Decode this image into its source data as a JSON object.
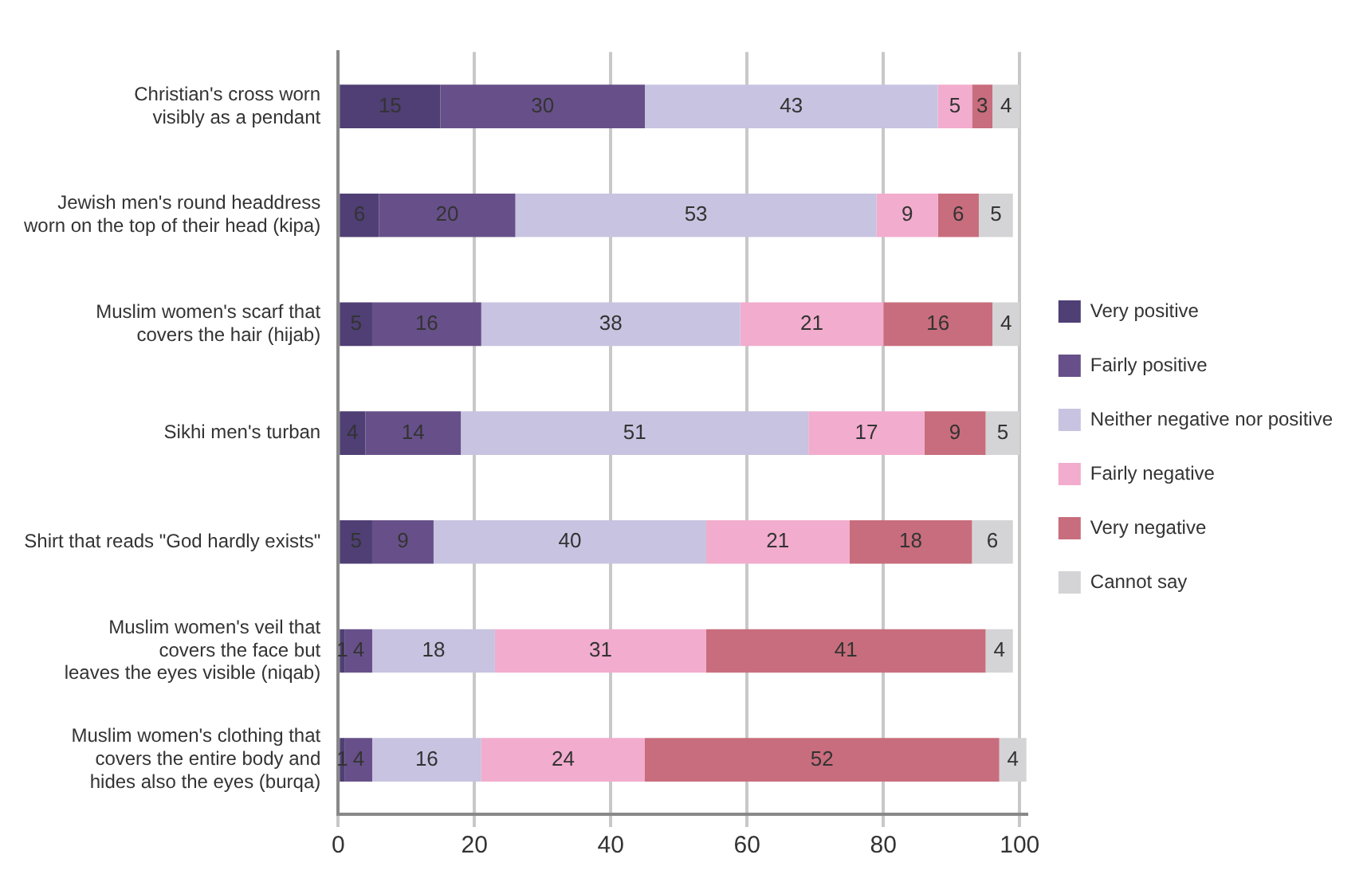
{
  "chart_data": {
    "type": "bar",
    "orientation": "horizontal",
    "stacked": true,
    "categories": [
      "Christian's cross worn\nvisibly as a pendant",
      "Jewish men's round headdress\nworn on the top of their head (kipa)",
      "Muslim women's scarf that\ncovers the hair (hijab)",
      "Sikhi men's turban",
      "Shirt that reads \"God hardly exists\"",
      "Muslim women's veil that\ncovers the face but\nleaves the eyes visible (niqab)",
      "Muslim women's clothing that\ncovers the entire body and\nhides also the eyes (burqa)"
    ],
    "series": [
      {
        "name": "Very positive",
        "color": "#4f3f74",
        "values": [
          15,
          6,
          5,
          4,
          5,
          1,
          1
        ]
      },
      {
        "name": "Fairly positive",
        "color": "#675089",
        "values": [
          30,
          20,
          16,
          14,
          9,
          4,
          4
        ]
      },
      {
        "name": "Neither negative nor positive",
        "color": "#c7c3e0",
        "values": [
          43,
          53,
          38,
          51,
          40,
          18,
          16
        ]
      },
      {
        "name": "Fairly negative",
        "color": "#f2accd",
        "values": [
          5,
          9,
          21,
          17,
          21,
          31,
          24
        ]
      },
      {
        "name": "Very negative",
        "color": "#c86d7d",
        "values": [
          3,
          6,
          16,
          9,
          18,
          41,
          52
        ]
      },
      {
        "name": "Cannot say",
        "color": "#d4d4d6",
        "values": [
          4,
          5,
          4,
          5,
          6,
          4,
          4
        ]
      }
    ],
    "xlim": [
      0,
      101
    ],
    "xticks": [
      0,
      20,
      40,
      60,
      80,
      100
    ],
    "grid": "x",
    "legend": "right",
    "data_labels": true
  }
}
